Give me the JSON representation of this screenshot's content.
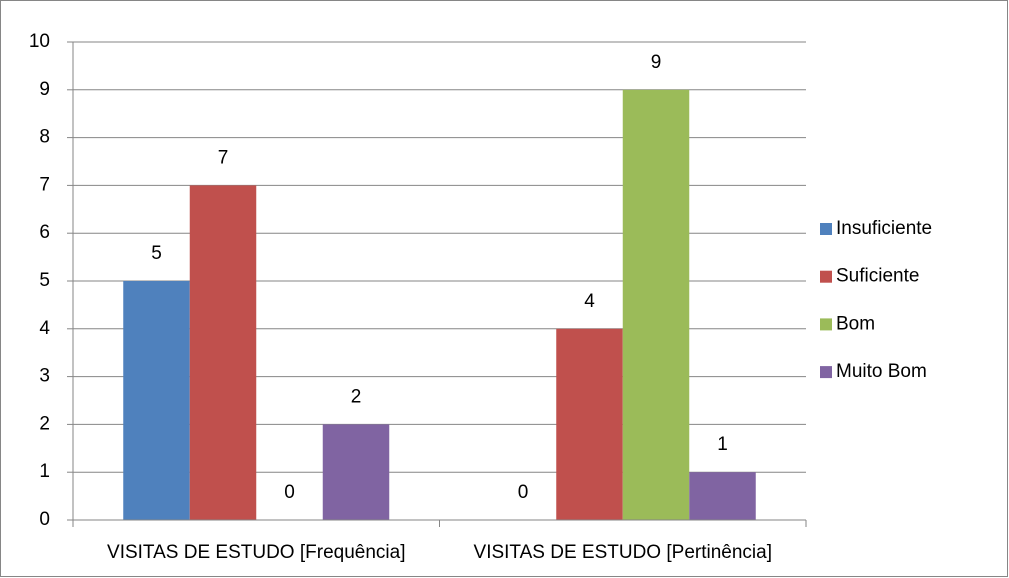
{
  "chart_data": {
    "type": "bar",
    "categories": [
      "VISITAS DE ESTUDO [Frequência]",
      "VISITAS DE ESTUDO [Pertinência]"
    ],
    "series": [
      {
        "name": "Insuficiente",
        "color": "#4f81bd",
        "values": [
          5,
          0
        ]
      },
      {
        "name": "Suficiente",
        "color": "#c0504d",
        "values": [
          7,
          4
        ]
      },
      {
        "name": "Bom",
        "color": "#9bbb59",
        "values": [
          0,
          9
        ]
      },
      {
        "name": "Muito Bom",
        "color": "#8064a2",
        "values": [
          2,
          1
        ]
      }
    ],
    "ylim": [
      0,
      10
    ],
    "yticks": [
      0,
      1,
      2,
      3,
      4,
      5,
      6,
      7,
      8,
      9,
      10
    ],
    "grid": true,
    "legend": "right"
  }
}
